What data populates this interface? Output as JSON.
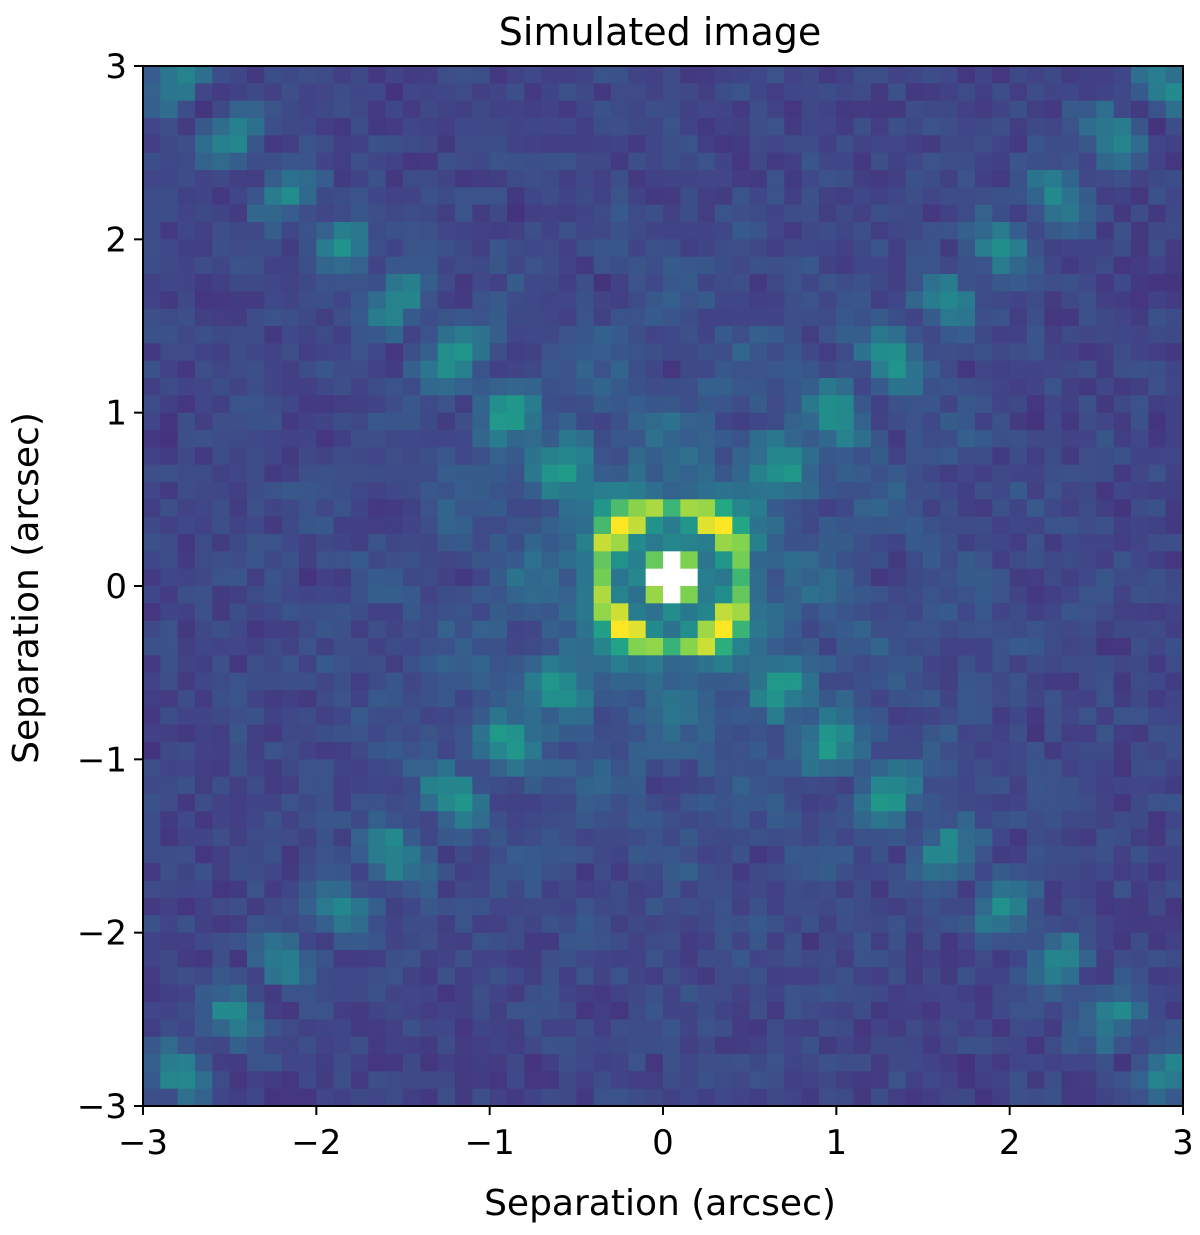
{
  "chart_data": {
    "type": "heatmap",
    "title": "Simulated image",
    "xlabel": "Separation (arcsec)",
    "ylabel": "Separation (arcsec)",
    "xlim": [
      -3,
      3
    ],
    "ylim": [
      -3,
      3
    ],
    "xticks": [
      -3,
      -2,
      -1,
      0,
      1,
      2,
      3
    ],
    "yticks": [
      -3,
      -2,
      -1,
      0,
      1,
      2,
      3
    ],
    "xtick_labels": [
      "−3",
      "−2",
      "−1",
      "0",
      "1",
      "2",
      "3"
    ],
    "ytick_labels": [
      "−3",
      "−2",
      "−1",
      "0",
      "1",
      "2",
      "3"
    ],
    "grid": false,
    "colormap": "viridis",
    "pixels_per_axis": 60,
    "features": {
      "central_peak": {
        "x": 0.05,
        "y": 0.05,
        "color": "#ffffff"
      },
      "inner_ring_radius": 0.4,
      "diffraction_spikes": "diagonal X pattern through the center",
      "background": "low-level noisy speckle"
    },
    "colors": {
      "low": "#440154",
      "mid": "#21918c",
      "high": "#fde725",
      "saturated": "#ffffff"
    }
  }
}
